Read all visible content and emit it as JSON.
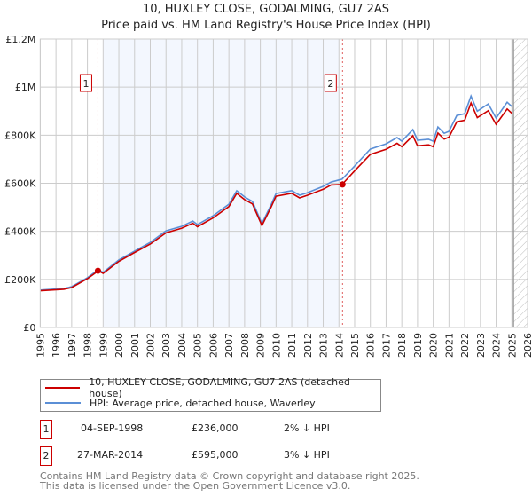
{
  "header": {
    "title": "10, HUXLEY CLOSE, GODALMING, GU7 2AS",
    "subtitle": "Price paid vs. HM Land Registry's House Price Index (HPI)"
  },
  "chart_data": {
    "type": "line",
    "title": "10, HUXLEY CLOSE, GODALMING, GU7 2AS",
    "subtitle": "Price paid vs. HM Land Registry's House Price Index (HPI)",
    "xlim": [
      1995,
      2026
    ],
    "ylim": [
      0,
      1200000
    ],
    "grid": true,
    "xticks": [
      1995,
      1996,
      1997,
      1998,
      1999,
      2000,
      2001,
      2002,
      2003,
      2004,
      2005,
      2006,
      2007,
      2008,
      2009,
      2010,
      2011,
      2012,
      2013,
      2014,
      2015,
      2016,
      2017,
      2018,
      2019,
      2020,
      2021,
      2022,
      2023,
      2024,
      2025,
      2026
    ],
    "yticks": [
      {
        "v": 0,
        "label": "£0"
      },
      {
        "v": 200000,
        "label": "£200K"
      },
      {
        "v": 400000,
        "label": "£400K"
      },
      {
        "v": 600000,
        "label": "£600K"
      },
      {
        "v": 800000,
        "label": "£800K"
      },
      {
        "v": 1000000,
        "label": "£1M"
      },
      {
        "v": 1200000,
        "label": "£1.2M"
      }
    ],
    "shaded_range": [
      1999.0,
      2014.0
    ],
    "hatched_from": 2025.1,
    "series": [
      {
        "name": "10, HUXLEY CLOSE, GODALMING, GU7 2AS (detached house)",
        "color": "#cc0000",
        "x": [
          1995,
          1996.5,
          1997,
          1998,
          1998.7,
          1999,
          2000,
          2001,
          2002,
          2003,
          2004,
          2004.7,
          2005,
          2006,
          2007,
          2007.5,
          2008,
          2008.5,
          2009.1,
          2009.7,
          2010,
          2011,
          2011.5,
          2012,
          2013,
          2013.5,
          2014.2,
          2015,
          2016,
          2017,
          2017.7,
          2018,
          2018.7,
          2019,
          2019.7,
          2020,
          2020.3,
          2020.7,
          2021,
          2021.5,
          2022,
          2022.4,
          2022.8,
          2023.5,
          2024,
          2024.7,
          2025.0
        ],
        "y": [
          153000,
          159000,
          166000,
          203000,
          236000,
          225000,
          275000,
          312000,
          347000,
          394000,
          413000,
          434000,
          419000,
          456000,
          503000,
          558000,
          532000,
          514000,
          424000,
          503000,
          546000,
          558000,
          539000,
          550000,
          575000,
          593000,
          595000,
          652000,
          720000,
          741000,
          766000,
          752000,
          798000,
          756000,
          760000,
          752000,
          809000,
          784000,
          792000,
          856000,
          862000,
          934000,
          873000,
          902000,
          845000,
          909000,
          891000
        ]
      },
      {
        "name": "HPI: Average price, detached house, Waverley",
        "color": "#5b8fd6",
        "x": [
          1995,
          1996.5,
          1997,
          1998,
          1998.7,
          1999,
          2000,
          2001,
          2002,
          2003,
          2004,
          2004.7,
          2005,
          2006,
          2007,
          2007.5,
          2008,
          2008.5,
          2009.1,
          2009.7,
          2010,
          2011,
          2011.5,
          2012,
          2013,
          2013.5,
          2014.2,
          2015,
          2016,
          2017,
          2017.7,
          2018,
          2018.7,
          2019,
          2019.7,
          2020,
          2020.3,
          2020.7,
          2021,
          2021.5,
          2022,
          2022.4,
          2022.8,
          2023.5,
          2024,
          2024.7,
          2025.0
        ],
        "y": [
          156000,
          162000,
          170000,
          207000,
          241000,
          229000,
          281000,
          318000,
          354000,
          402000,
          421000,
          443000,
          428000,
          465000,
          513000,
          569000,
          543000,
          524000,
          432000,
          513000,
          557000,
          569000,
          550000,
          561000,
          587000,
          605000,
          617000,
          672000,
          742000,
          764000,
          790000,
          775000,
          823000,
          779000,
          783000,
          775000,
          834000,
          808000,
          816000,
          882000,
          889000,
          963000,
          900000,
          930000,
          871000,
          937000,
          919000
        ]
      }
    ],
    "sales": [
      {
        "id": "1",
        "x": 1998.67,
        "y": 236000,
        "date": "04-SEP-1998",
        "price": "£236,000",
        "hpi": "2% ↓ HPI"
      },
      {
        "id": "2",
        "x": 2014.23,
        "y": 595000,
        "date": "27-MAR-2014",
        "price": "£595,000",
        "hpi": "3% ↓ HPI"
      }
    ]
  },
  "legend": {
    "items": [
      {
        "label": "10, HUXLEY CLOSE, GODALMING, GU7 2AS (detached house)",
        "color": "#cc0000"
      },
      {
        "label": "HPI: Average price, detached house, Waverley",
        "color": "#5b8fd6"
      }
    ]
  },
  "footer": {
    "line1": "Contains HM Land Registry data © Crown copyright and database right 2025.",
    "line2": "This data is licensed under the Open Government Licence v3.0."
  }
}
